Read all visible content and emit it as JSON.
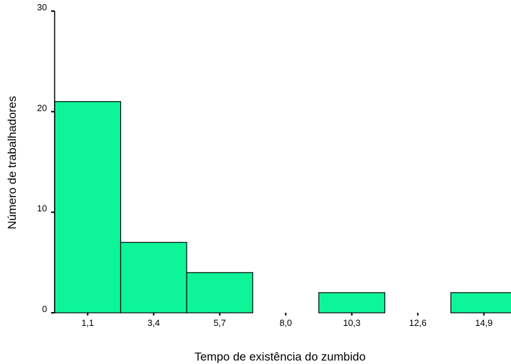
{
  "chart_data": {
    "type": "bar",
    "categories": [
      "1,1",
      "3,4",
      "5,7",
      "8,0",
      "10,3",
      "12,6",
      "14,9"
    ],
    "values": [
      21,
      7,
      4,
      0,
      2,
      0,
      2
    ],
    "title": "",
    "xlabel": "Tempo de existência do zumbido",
    "ylabel": "Número de trabalhadores",
    "ylim": [
      0,
      30
    ],
    "yticks": [
      "0",
      "10",
      "20",
      "30"
    ],
    "grid": false,
    "legend": "none",
    "bar_color": "#0DF598",
    "edge_color": "#000000"
  }
}
